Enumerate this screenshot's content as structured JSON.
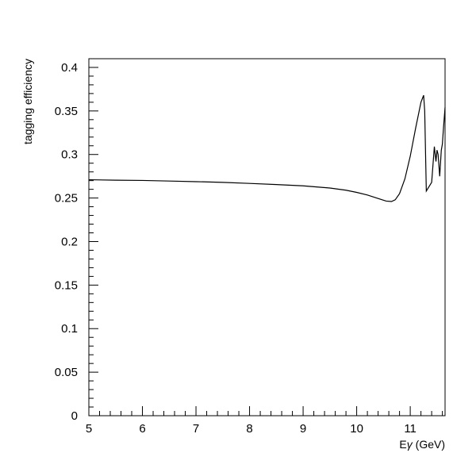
{
  "chart_data": {
    "type": "line",
    "title": "",
    "xlabel_prefix": "E",
    "xlabel_symbol": "γ",
    "xlabel_suffix": " (GeV)",
    "ylabel": "tagging efficiency",
    "xlim": [
      5,
      11.65
    ],
    "ylim": [
      0,
      0.41
    ],
    "x_ticks": [
      5,
      6,
      7,
      8,
      9,
      10,
      11
    ],
    "x_tick_labels": [
      "5",
      "6",
      "7",
      "8",
      "9",
      "10",
      "11"
    ],
    "y_ticks": [
      0,
      0.05,
      0.1,
      0.15,
      0.2,
      0.25,
      0.3,
      0.35,
      0.4
    ],
    "y_tick_labels": [
      "0",
      "0.05",
      "0.1",
      "0.15",
      "0.2",
      "0.25",
      "0.3",
      "0.35",
      "0.4"
    ],
    "grid": false,
    "legend": "none",
    "line_color": "#000000",
    "series": [
      {
        "x": [
          5.0,
          5.5,
          6.0,
          6.5,
          7.0,
          7.5,
          8.0,
          8.5,
          9.0,
          9.5,
          9.8,
          10.0,
          10.2,
          10.4,
          10.55,
          10.65,
          10.72,
          10.8,
          10.9,
          11.0,
          11.1,
          11.2,
          11.25,
          11.27,
          11.3,
          11.35,
          11.4,
          11.45,
          11.48,
          11.5,
          11.52,
          11.55,
          11.58,
          11.6,
          11.62,
          11.65
        ],
        "y": [
          0.271,
          0.2705,
          0.2702,
          0.2695,
          0.2688,
          0.268,
          0.2668,
          0.2655,
          0.264,
          0.2615,
          0.259,
          0.2565,
          0.2535,
          0.2495,
          0.2465,
          0.246,
          0.248,
          0.255,
          0.272,
          0.298,
          0.33,
          0.36,
          0.368,
          0.35,
          0.258,
          0.263,
          0.268,
          0.309,
          0.292,
          0.305,
          0.3,
          0.275,
          0.305,
          0.312,
          0.33,
          0.354
        ]
      }
    ]
  }
}
